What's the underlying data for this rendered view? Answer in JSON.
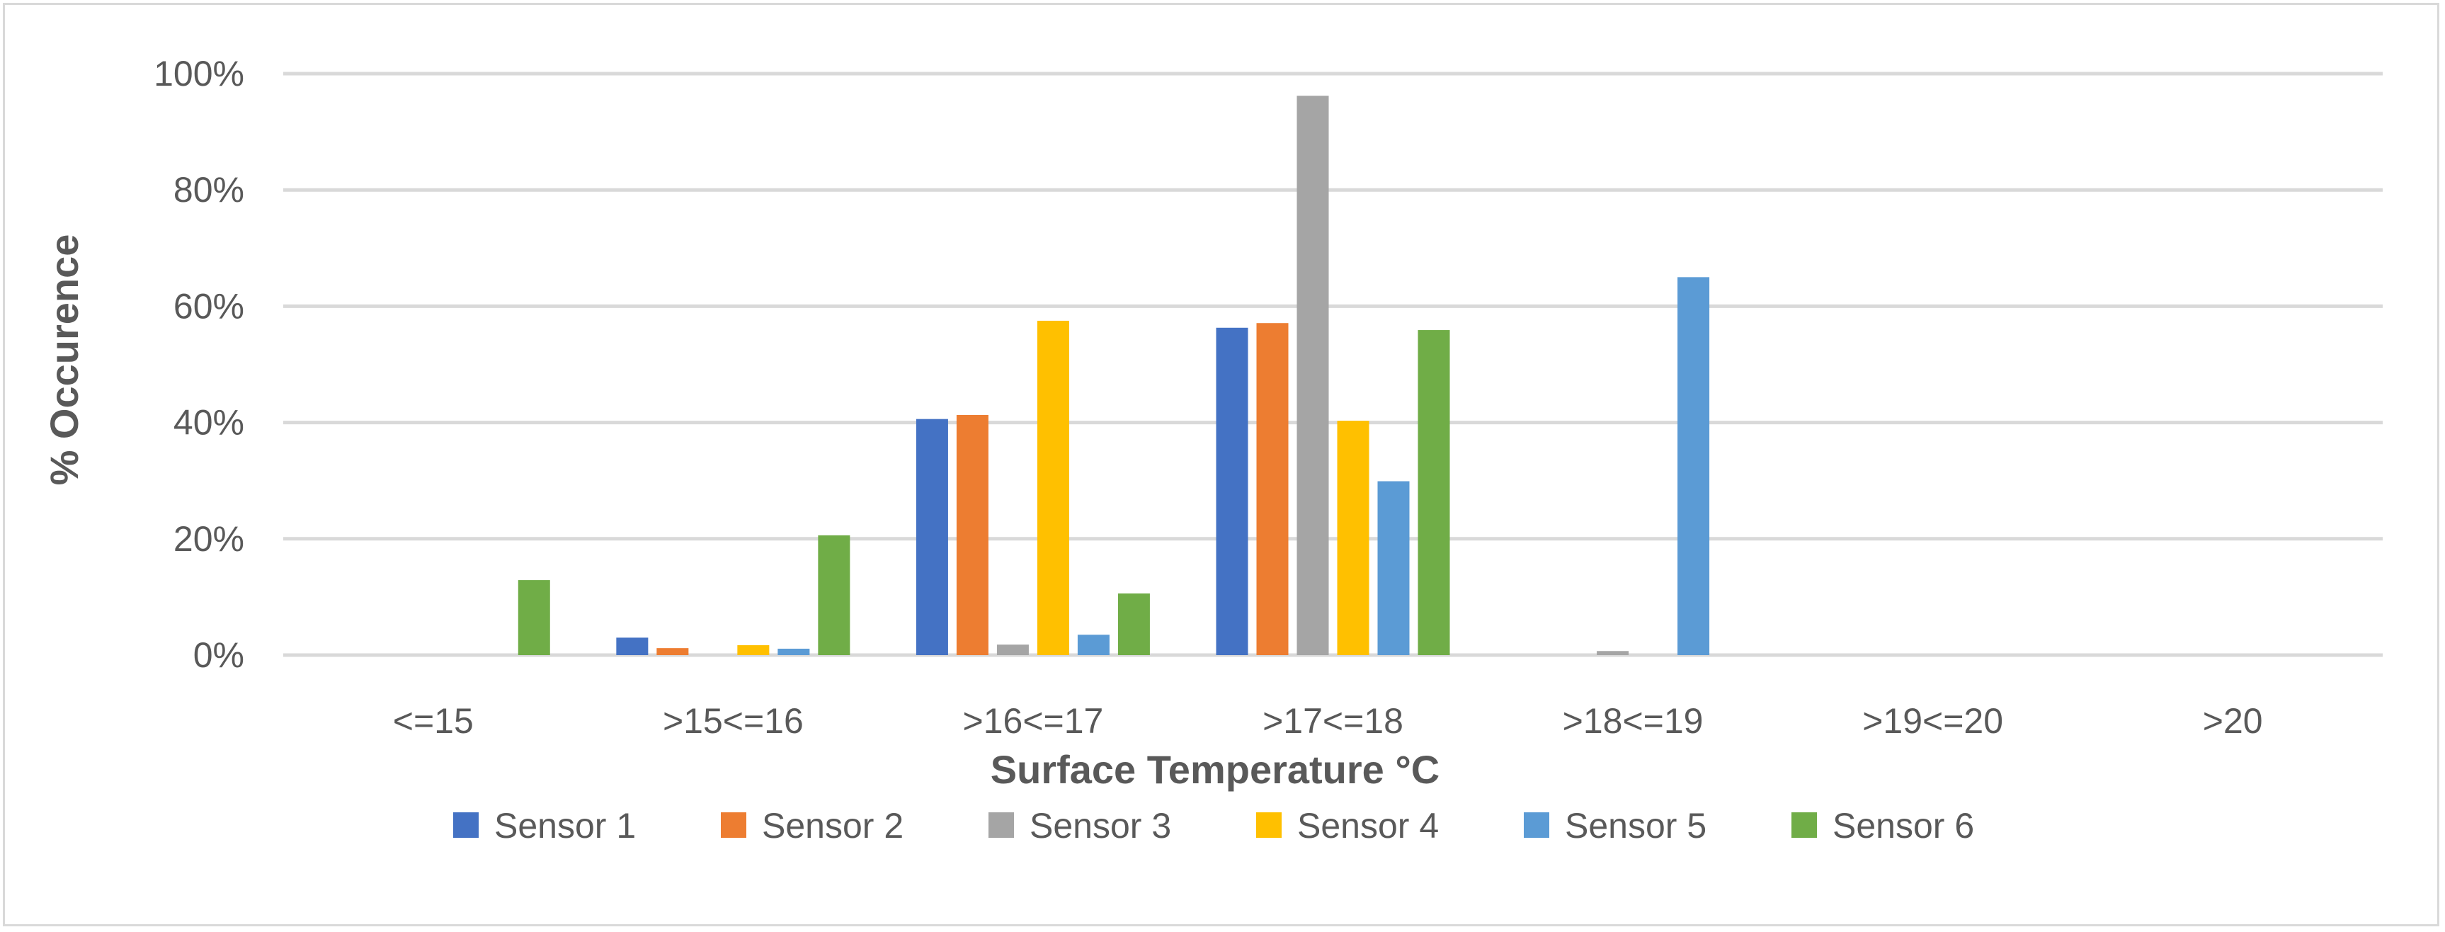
{
  "chart_data": {
    "type": "bar",
    "title": "",
    "xlabel": "Surface Temperature °C",
    "ylabel": "% Occurence",
    "categories": [
      "<=15",
      ">15<=16",
      ">16<=17",
      ">17<=18",
      ">18<=19",
      ">19<=20",
      ">20"
    ],
    "ylim": [
      0,
      100
    ],
    "yticks": [
      "0%",
      "20%",
      "40%",
      "60%",
      "80%",
      "100%"
    ],
    "grid": true,
    "legend_position": "bottom",
    "series": [
      {
        "name": "Sensor 1",
        "color": "#4472c4",
        "values": [
          0,
          3.0,
          40.6,
          56.3,
          0,
          0,
          0
        ]
      },
      {
        "name": "Sensor 2",
        "color": "#ed7d31",
        "values": [
          0,
          1.2,
          41.3,
          57.1,
          0,
          0,
          0
        ]
      },
      {
        "name": "Sensor 3",
        "color": "#a5a5a5",
        "values": [
          0,
          0,
          1.8,
          96.2,
          0.7,
          0,
          0
        ]
      },
      {
        "name": "Sensor 4",
        "color": "#ffc000",
        "values": [
          0,
          1.7,
          57.5,
          40.3,
          0,
          0,
          0
        ]
      },
      {
        "name": "Sensor 5",
        "color": "#5b9bd5",
        "values": [
          0,
          1.1,
          3.5,
          29.9,
          65.0,
          0,
          0
        ]
      },
      {
        "name": "Sensor 6",
        "color": "#70ad47",
        "values": [
          12.9,
          20.6,
          10.6,
          55.9,
          0,
          0,
          0
        ]
      }
    ]
  }
}
